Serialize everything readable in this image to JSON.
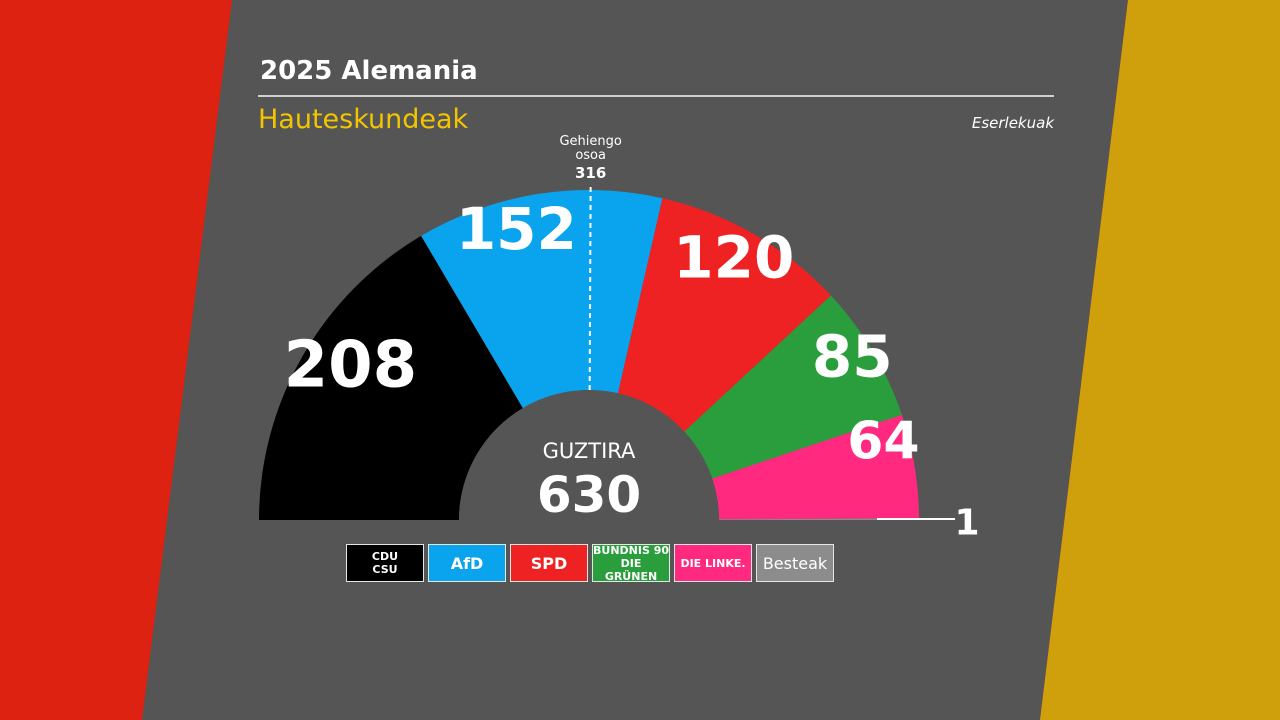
{
  "header": {
    "title": "2025 Alemania",
    "subtitle": "Hauteskundeak",
    "units": "Eserlekuak"
  },
  "colors": {
    "background": "#555555",
    "flag_left": "#dd2211",
    "flag_right": "#cfa00c"
  },
  "chart_data": {
    "type": "pie",
    "variant": "half-donut parliament",
    "total_label": "GUZTIRA",
    "total": 630,
    "majority_label_line1": "Gehiengo",
    "majority_label_line2": "osoa",
    "majority_value": 316,
    "parties": [
      {
        "legend": "CDU\nCSU",
        "seats": 208,
        "label": "208",
        "color": "#000000"
      },
      {
        "legend": "AfD",
        "seats": 152,
        "label": "152",
        "color": "#0aa4ee"
      },
      {
        "legend": "SPD",
        "seats": 120,
        "label": "120",
        "color": "#ee2222"
      },
      {
        "legend": "BÜNDNIS 90\nDIE GRÜNEN",
        "seats": 85,
        "label": "85",
        "color": "#2a9e3c"
      },
      {
        "legend": "DIE LINKE.",
        "seats": 64,
        "label": "64",
        "color": "#ff2a7f"
      },
      {
        "legend": "Besteak",
        "seats": 1,
        "label": "1",
        "color": "#8c8c8c"
      }
    ]
  }
}
